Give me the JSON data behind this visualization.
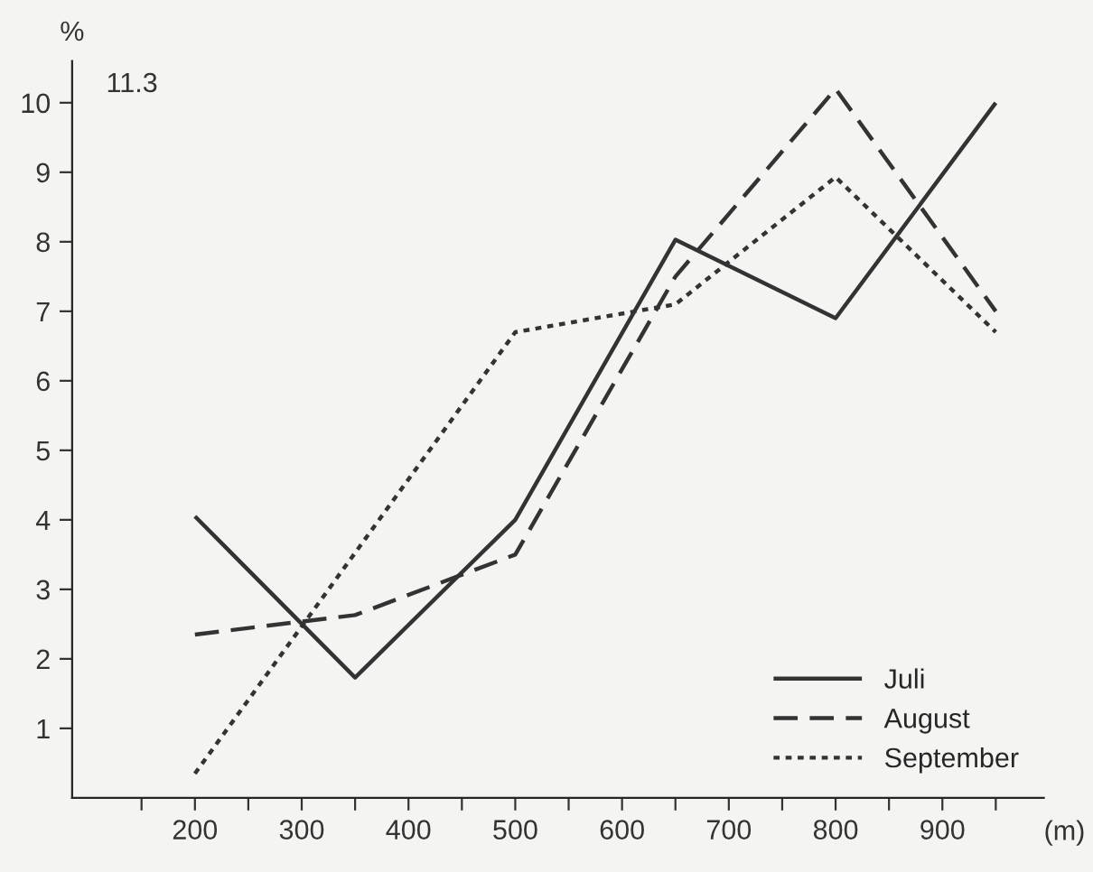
{
  "chart_data": {
    "type": "line",
    "ylabel": "%",
    "xlabel": "(m)",
    "annotations": [
      "11.3"
    ],
    "xlim": [
      85,
      995
    ],
    "xticks": [
      {
        "value": 150,
        "label": null
      },
      200,
      {
        "value": 250,
        "label": null
      },
      300,
      {
        "value": 350,
        "label": null
      },
      400,
      {
        "value": 450,
        "label": null
      },
      500,
      {
        "value": 550,
        "label": null
      },
      600,
      {
        "value": 650,
        "label": null
      },
      700,
      {
        "value": 750,
        "label": null
      },
      800,
      {
        "value": 850,
        "label": null
      },
      900,
      {
        "value": 950,
        "label": null
      }
    ],
    "ylim": [
      0,
      10.6
    ],
    "yticks": [
      1,
      2,
      3,
      4,
      5,
      6,
      7,
      8,
      9,
      10
    ],
    "grid": false,
    "legend": "bottom right",
    "marker": "none",
    "series": [
      {
        "name": "Juli",
        "color": "#333333",
        "line_style": "solid",
        "x": [
          200,
          350,
          500,
          650,
          800,
          950
        ],
        "values": [
          4.05,
          1.73,
          4.0,
          8.03,
          6.9,
          10.0
        ]
      },
      {
        "name": "August",
        "color": "#333333",
        "line_style": "dashed",
        "x": [
          200,
          350,
          500,
          650,
          800,
          950
        ],
        "values": [
          2.35,
          2.63,
          3.5,
          7.5,
          10.2,
          7.0
        ]
      },
      {
        "name": "September",
        "color": "#333333",
        "line_style": "dotted",
        "x": [
          200,
          500,
          650,
          800,
          950
        ],
        "values": [
          0.35,
          6.7,
          7.1,
          8.93,
          6.7
        ]
      }
    ]
  }
}
